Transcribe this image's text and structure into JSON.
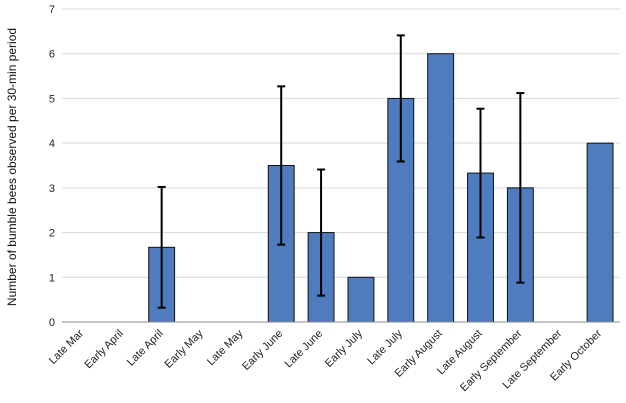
{
  "chart_data": {
    "type": "bar",
    "title": "",
    "xlabel": "",
    "ylabel": "Number of bumble bees observed per 30-min period",
    "ylim": [
      0,
      7
    ],
    "yticks": [
      0,
      1,
      2,
      3,
      4,
      5,
      6,
      7
    ],
    "grid": true,
    "categories": [
      "Late Mar",
      "Early April",
      "Late April",
      "Early May",
      "Late May",
      "Early June",
      "Late June",
      "Early July",
      "Late July",
      "Early August",
      "Late August",
      "Early September",
      "Late September",
      "Early October"
    ],
    "values": [
      0,
      0,
      1.67,
      0,
      0,
      3.5,
      2.0,
      1.0,
      5.0,
      6.0,
      3.33,
      3.0,
      0,
      4.0
    ],
    "error_bars": [
      null,
      null,
      {
        "low": 0.32,
        "high": 3.02
      },
      null,
      null,
      {
        "low": 1.73,
        "high": 5.27
      },
      {
        "low": 0.59,
        "high": 3.41
      },
      null,
      {
        "low": 3.59,
        "high": 6.41
      },
      null,
      {
        "low": 1.89,
        "high": 4.77
      },
      {
        "low": 0.88,
        "high": 5.12
      },
      null,
      null
    ],
    "colors": {
      "bar": "#4f7cbe",
      "bar_edge": "#111111",
      "grid": "#d9d9d9",
      "axis": "#888888",
      "error": "#000000"
    }
  }
}
